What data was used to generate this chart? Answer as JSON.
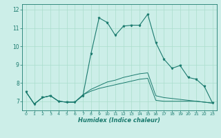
{
  "title": "",
  "xlabel": "Humidex (Indice chaleur)",
  "bg_color": "#cceee8",
  "grid_color": "#aaddcc",
  "line_color": "#1a7a6e",
  "xlim": [
    -0.5,
    23.5
  ],
  "ylim": [
    6.5,
    12.3
  ],
  "xticks": [
    0,
    1,
    2,
    3,
    4,
    5,
    6,
    7,
    8,
    9,
    10,
    11,
    12,
    13,
    14,
    15,
    16,
    17,
    18,
    19,
    20,
    21,
    22,
    23
  ],
  "yticks": [
    7,
    8,
    9,
    10,
    11,
    12
  ],
  "curve1_x": [
    0,
    1,
    2,
    3,
    4,
    5,
    6,
    7,
    8,
    9,
    10,
    11,
    12,
    13,
    14,
    15,
    16,
    17,
    18,
    19,
    20,
    21,
    22,
    23
  ],
  "curve1_y": [
    7.5,
    6.85,
    7.2,
    7.3,
    7.0,
    6.95,
    6.95,
    7.3,
    9.6,
    11.55,
    11.3,
    10.6,
    11.1,
    11.15,
    11.15,
    11.75,
    10.2,
    9.3,
    8.8,
    8.95,
    8.3,
    8.2,
    7.8,
    6.9
  ],
  "curve2_x": [
    0,
    1,
    2,
    3,
    4,
    5,
    6,
    7,
    8,
    9,
    10,
    11,
    12,
    13,
    14,
    15,
    16,
    17,
    18,
    19,
    20,
    21,
    22,
    23
  ],
  "curve2_y": [
    7.5,
    6.85,
    7.2,
    7.3,
    7.0,
    6.95,
    6.95,
    7.35,
    7.55,
    7.7,
    7.8,
    7.9,
    8.0,
    8.1,
    8.2,
    8.25,
    7.05,
    7.0,
    7.0,
    7.0,
    7.0,
    7.0,
    6.95,
    6.9
  ],
  "curve3_x": [
    0,
    1,
    2,
    3,
    4,
    5,
    6,
    7,
    8,
    9,
    10,
    11,
    12,
    13,
    14,
    15,
    16,
    17,
    18,
    19,
    20,
    21,
    22,
    23
  ],
  "curve3_y": [
    7.5,
    6.85,
    7.2,
    7.3,
    7.0,
    6.95,
    6.95,
    7.35,
    7.65,
    7.85,
    8.05,
    8.15,
    8.3,
    8.4,
    8.5,
    8.55,
    7.3,
    7.2,
    7.15,
    7.1,
    7.05,
    7.0,
    6.95,
    6.9
  ]
}
